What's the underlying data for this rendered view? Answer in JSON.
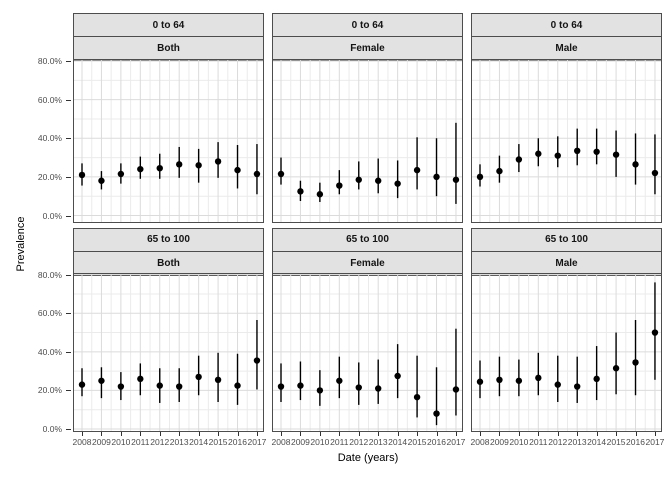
{
  "figure": {
    "y_axis_title": "Prevalence",
    "x_axis_title": "Date (years)"
  },
  "chart_data": {
    "type": "scatter",
    "title": "",
    "xlabel": "Date (years)",
    "ylabel": "Prevalence",
    "x": [
      "2008",
      "2009",
      "2010",
      "2011",
      "2012",
      "2013",
      "2014",
      "2015",
      "2016",
      "2017"
    ],
    "y_tick_labels": [
      "0.0%",
      "20.0%",
      "40.0%",
      "60.0%",
      "80.0%"
    ],
    "y_tick_values_pct": [
      0,
      20,
      40,
      60,
      80
    ],
    "ylim_pct": [
      0,
      84
    ],
    "grid": true,
    "legend_position": "none",
    "point_color": "#000000",
    "error_bars": "95% CI",
    "facet_row_labels": [
      "0 to 64",
      "65 to 100"
    ],
    "facet_col_labels": [
      "Both",
      "Female",
      "Male"
    ],
    "facets": [
      {
        "age_group": "0 to 64",
        "sex": "Both",
        "values_pct": [
          21,
          18,
          21.5,
          24,
          24.5,
          26.5,
          26,
          28,
          23.5,
          21.5
        ],
        "ci_low_pct": [
          15.5,
          13.5,
          16.5,
          19,
          19,
          19.5,
          17,
          19.5,
          14,
          11
        ],
        "ci_high_pct": [
          27,
          23,
          27,
          30.5,
          32,
          35.5,
          34.5,
          38,
          36.5,
          37
        ]
      },
      {
        "age_group": "0 to 64",
        "sex": "Female",
        "values_pct": [
          21.5,
          12.5,
          11,
          15.5,
          18.5,
          18,
          16.5,
          23.5,
          20,
          18.5
        ],
        "ci_low_pct": [
          16,
          7.5,
          7,
          11,
          13.5,
          11.5,
          9,
          13.5,
          10,
          6
        ],
        "ci_high_pct": [
          30,
          18,
          17,
          23.5,
          28,
          29.5,
          28.5,
          40.5,
          40,
          48
        ]
      },
      {
        "age_group": "0 to 64",
        "sex": "Male",
        "values_pct": [
          20,
          23,
          29,
          32,
          31,
          33.5,
          33,
          31.5,
          26.5,
          22
        ],
        "ci_low_pct": [
          15,
          17,
          22.5,
          25.5,
          25,
          26,
          26.5,
          20,
          16,
          11
        ],
        "ci_high_pct": [
          26.5,
          31,
          37,
          40,
          41,
          45,
          45,
          44,
          42.5,
          42
        ]
      },
      {
        "age_group": "65 to 100",
        "sex": "Both",
        "values_pct": [
          23,
          25,
          22,
          26,
          22.5,
          22,
          27,
          25.5,
          22.5,
          35.5
        ],
        "ci_low_pct": [
          17,
          16,
          15,
          17.5,
          13.5,
          14,
          17.5,
          14,
          12.5,
          20.5
        ],
        "ci_high_pct": [
          31.5,
          32,
          29.5,
          34,
          31.5,
          31.5,
          38,
          39.5,
          39,
          56.5
        ]
      },
      {
        "age_group": "65 to 100",
        "sex": "Female",
        "values_pct": [
          22,
          22.5,
          20,
          25,
          21.5,
          21,
          27.5,
          16.5,
          8,
          20.5
        ],
        "ci_low_pct": [
          14,
          15,
          12,
          16,
          12.5,
          13,
          16,
          6,
          2,
          7
        ],
        "ci_high_pct": [
          34,
          35,
          30.5,
          37.5,
          34.5,
          36,
          44,
          38,
          32,
          52
        ]
      },
      {
        "age_group": "65 to 100",
        "sex": "Male",
        "values_pct": [
          24.5,
          25.5,
          25,
          26.5,
          23,
          22,
          26,
          31.5,
          34.5,
          50
        ],
        "ci_low_pct": [
          16,
          17,
          17,
          17.5,
          14,
          13.5,
          15,
          18,
          17.5,
          25.5
        ],
        "ci_high_pct": [
          35.5,
          37.5,
          36,
          39.5,
          38,
          37.5,
          43,
          50,
          56.5,
          76
        ]
      }
    ]
  },
  "colors": {
    "panel_border": "#4d4d4d",
    "strip_fill": "#e2e2e2",
    "grid_major": "#dbdbdb",
    "grid_minor": "#ebebeb",
    "tick_text": "#4d4d4d",
    "point": "#000000"
  }
}
